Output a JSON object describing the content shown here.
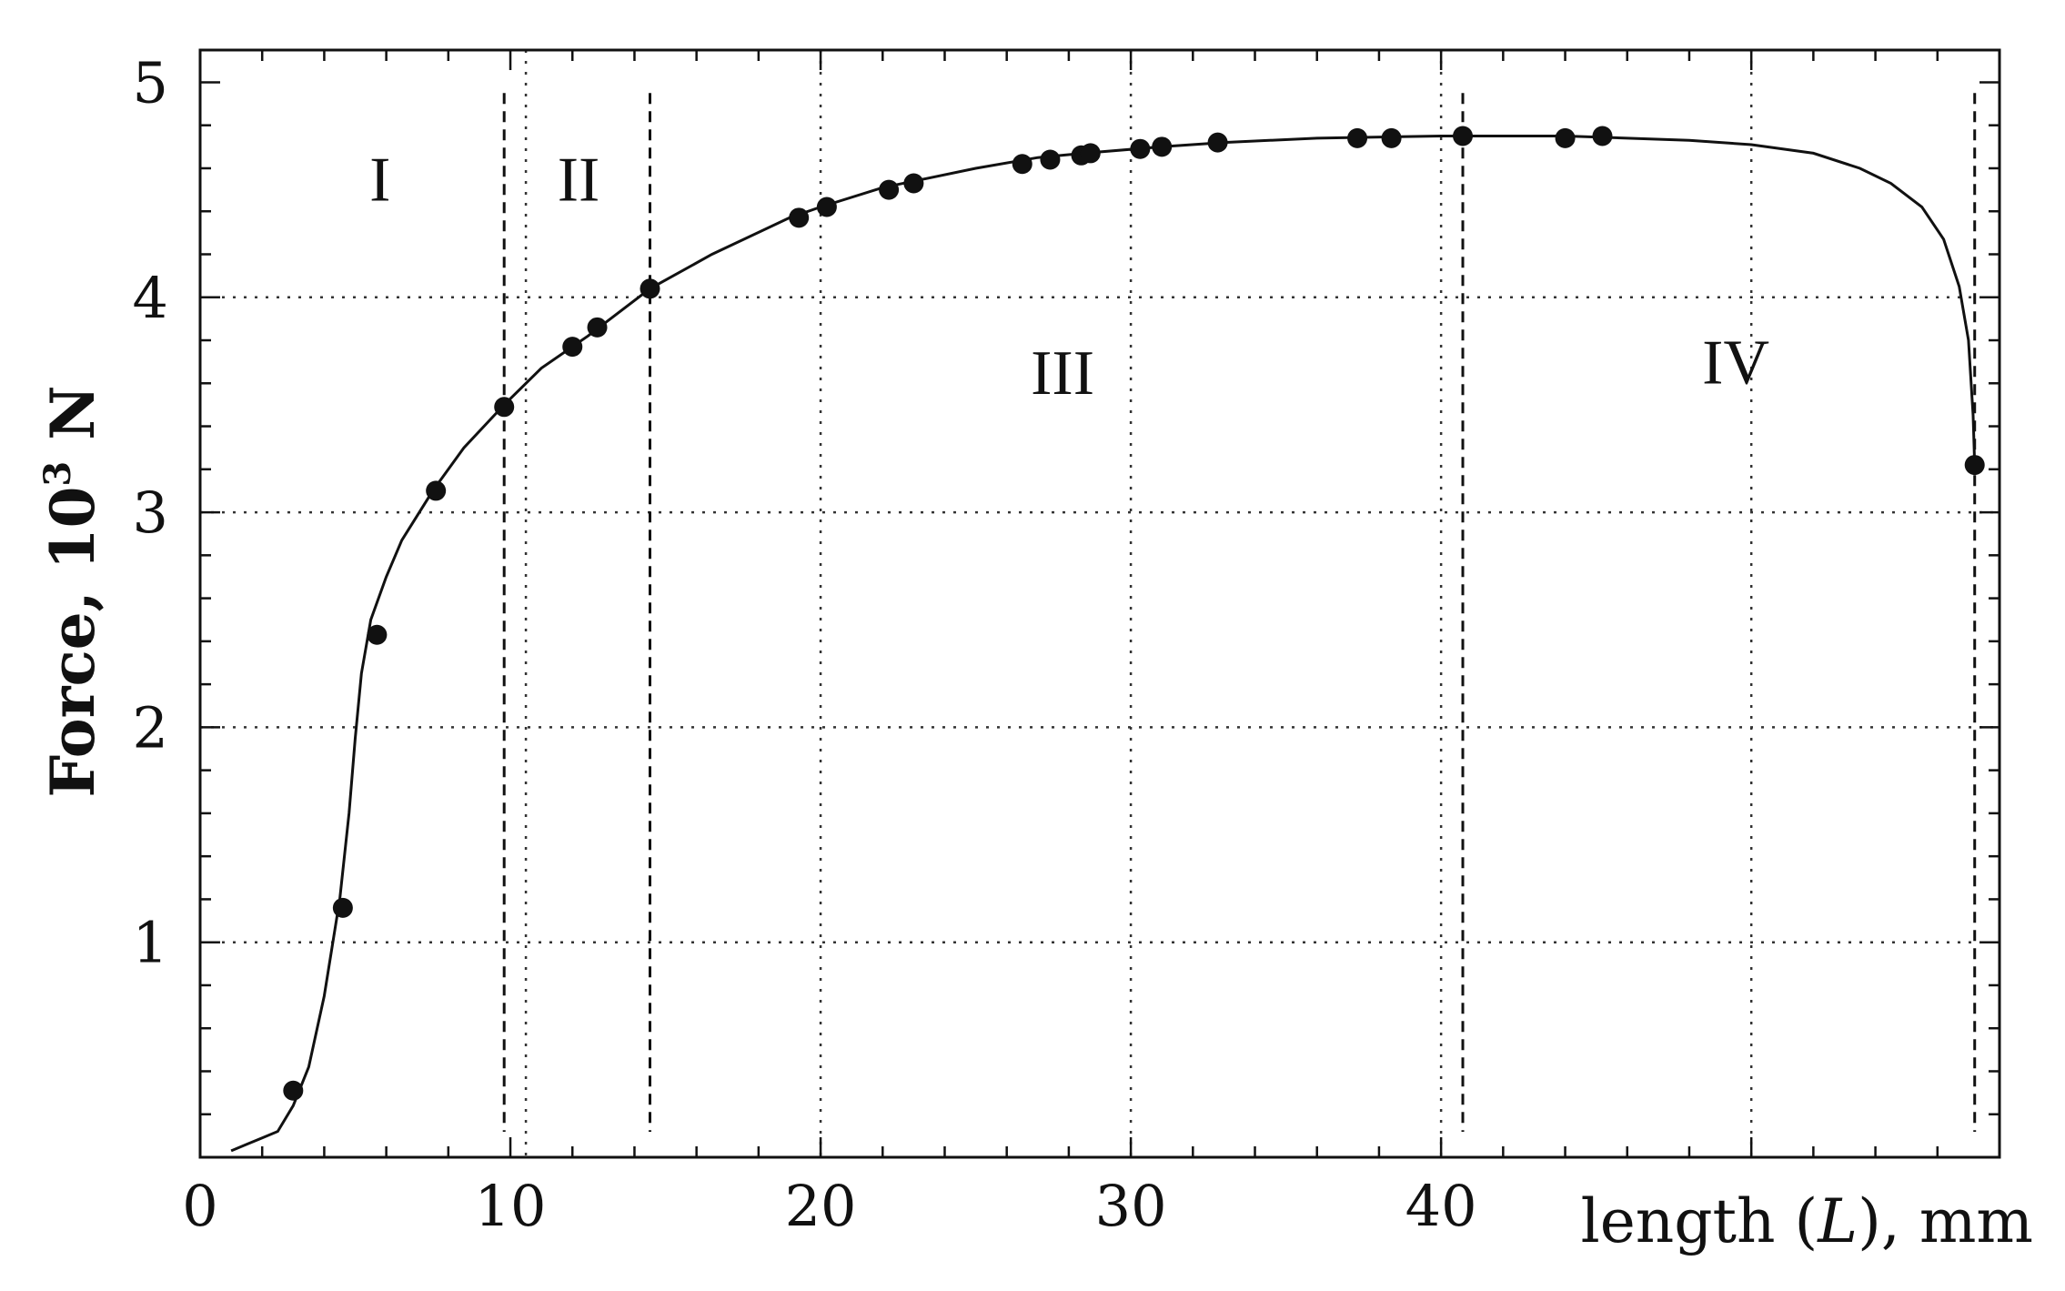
{
  "chart_data": {
    "type": "line",
    "title": "",
    "xlabel_prefix": "length (",
    "xlabel_var": "L",
    "xlabel_suffix": "), mm",
    "ylabel_main": "Force, 10",
    "ylabel_sup": "3",
    "ylabel_unit": " N",
    "xlim": [
      0,
      58
    ],
    "ylim": [
      -0.0,
      5.15
    ],
    "x_ticks": [
      0,
      10,
      20,
      30,
      40
    ],
    "y_ticks": [
      1,
      2,
      3,
      4,
      5
    ],
    "grid": true,
    "grid_x": [
      10.5,
      20,
      30,
      40,
      50
    ],
    "grid_y": [
      1,
      2,
      3,
      4
    ],
    "region_boundaries": [
      9.8,
      14.5,
      40.7,
      57.2
    ],
    "regions": [
      {
        "label": "I",
        "x": 5.8,
        "y": 4.45
      },
      {
        "label": "II",
        "x": 12.2,
        "y": 4.45
      },
      {
        "label": "III",
        "x": 27.8,
        "y": 3.55
      },
      {
        "label": "IV",
        "x": 49.5,
        "y": 3.6
      }
    ],
    "series": [
      {
        "curve": [
          [
            1.0,
            0.03
          ],
          [
            1.5,
            0.06
          ],
          [
            2.0,
            0.09
          ],
          [
            2.5,
            0.12
          ],
          [
            3.0,
            0.24
          ],
          [
            3.5,
            0.42
          ],
          [
            4.0,
            0.75
          ],
          [
            4.5,
            1.2
          ],
          [
            4.8,
            1.6
          ],
          [
            5.0,
            1.95
          ],
          [
            5.2,
            2.25
          ],
          [
            5.5,
            2.5
          ],
          [
            6.0,
            2.7
          ],
          [
            6.5,
            2.87
          ],
          [
            7.5,
            3.1
          ],
          [
            8.5,
            3.3
          ],
          [
            9.8,
            3.5
          ],
          [
            11.0,
            3.67
          ],
          [
            12.5,
            3.82
          ],
          [
            14.5,
            4.04
          ],
          [
            16.5,
            4.2
          ],
          [
            19.0,
            4.37
          ],
          [
            20.0,
            4.42
          ],
          [
            22.0,
            4.51
          ],
          [
            25.0,
            4.6
          ],
          [
            27.0,
            4.65
          ],
          [
            28.5,
            4.67
          ],
          [
            31.0,
            4.7
          ],
          [
            33.0,
            4.72
          ],
          [
            36.0,
            4.74
          ],
          [
            40.0,
            4.75
          ],
          [
            44.0,
            4.75
          ],
          [
            46.0,
            4.74
          ],
          [
            48.0,
            4.73
          ],
          [
            50.0,
            4.71
          ],
          [
            52.0,
            4.67
          ],
          [
            53.5,
            4.6
          ],
          [
            54.5,
            4.53
          ],
          [
            55.5,
            4.42
          ],
          [
            56.2,
            4.27
          ],
          [
            56.7,
            4.05
          ],
          [
            57.0,
            3.8
          ],
          [
            57.15,
            3.45
          ],
          [
            57.2,
            3.22
          ]
        ],
        "markers": [
          [
            3.0,
            0.31
          ],
          [
            4.6,
            1.16
          ],
          [
            5.7,
            2.43
          ],
          [
            7.6,
            3.1
          ],
          [
            9.8,
            3.49
          ],
          [
            12.0,
            3.77
          ],
          [
            12.8,
            3.86
          ],
          [
            14.5,
            4.04
          ],
          [
            19.3,
            4.37
          ],
          [
            20.2,
            4.42
          ],
          [
            22.2,
            4.5
          ],
          [
            23.0,
            4.53
          ],
          [
            26.5,
            4.62
          ],
          [
            27.4,
            4.64
          ],
          [
            28.4,
            4.66
          ],
          [
            28.7,
            4.67
          ],
          [
            30.3,
            4.69
          ],
          [
            31.0,
            4.7
          ],
          [
            32.8,
            4.72
          ],
          [
            37.3,
            4.74
          ],
          [
            38.4,
            4.74
          ],
          [
            40.7,
            4.75
          ],
          [
            44.0,
            4.74
          ],
          [
            45.2,
            4.75
          ],
          [
            57.2,
            3.22
          ]
        ]
      }
    ]
  }
}
